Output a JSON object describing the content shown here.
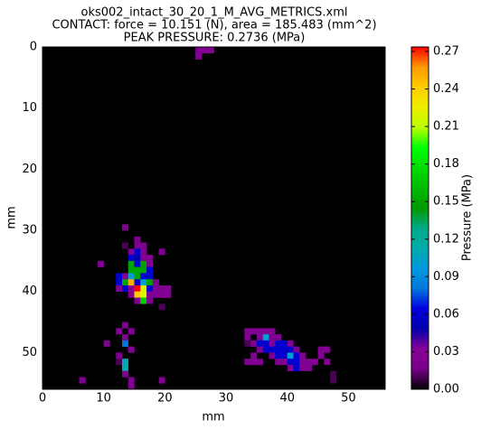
{
  "chart_data": {
    "type": "heatmap",
    "title": [
      "oks002_intact_30_20_1_M_AVG_METRICS.xml",
      "CONTACT: force = 10.151 (N), area = 185.483 (mm^2)",
      "PEAK PRESSURE: 0.2736 (MPa)"
    ],
    "xlabel": "mm",
    "ylabel": "mm",
    "colorbar_label": "Pressure (MPa)",
    "background": "#000000",
    "xlim": [
      0,
      56
    ],
    "ylim": [
      56,
      0
    ],
    "xticks": [
      0,
      10,
      20,
      30,
      40,
      50
    ],
    "yticks": [
      0,
      10,
      20,
      30,
      40,
      50
    ],
    "clim": [
      0,
      0.2736
    ],
    "cticks": [
      {
        "value": 0,
        "label": "0.00"
      },
      0.03,
      0.06,
      0.09,
      0.12,
      0.15,
      0.18,
      0.21,
      0.24,
      0.27
    ],
    "colorscale": [
      "#000000",
      "#770088",
      "#880099",
      "#0000aa",
      "#0000dd",
      "#0077dd",
      "#0099dd",
      "#00aaaa",
      "#00aa88",
      "#009900",
      "#00bb00",
      "#00dd00",
      "#00ff00",
      "#bbff00",
      "#eeee00",
      "#ffcc00",
      "#ff9900",
      "#ff0000"
    ],
    "x": [
      25,
      26,
      27,
      25,
      13,
      15,
      13,
      15,
      16,
      14,
      15,
      16,
      19,
      14,
      15,
      16,
      17,
      9,
      14,
      15,
      16,
      17,
      14,
      15,
      16,
      17,
      12,
      13,
      14,
      15,
      16,
      17,
      12,
      13,
      14,
      15,
      16,
      17,
      18,
      12,
      13,
      14,
      15,
      16,
      17,
      18,
      19,
      20,
      14,
      15,
      16,
      17,
      18,
      19,
      20,
      15,
      16,
      17,
      19,
      13,
      12,
      14,
      13,
      10,
      13,
      14,
      12,
      12,
      13,
      13,
      13,
      6,
      14,
      19,
      14,
      33,
      34,
      35,
      36,
      37,
      33,
      35,
      36,
      37,
      38,
      33,
      34,
      35,
      36,
      37,
      38,
      39,
      40,
      35,
      36,
      37,
      38,
      39,
      40,
      41,
      45,
      46,
      34,
      37,
      38,
      39,
      40,
      41,
      42,
      45,
      33,
      34,
      35,
      38,
      39,
      40,
      41,
      42,
      43,
      44,
      46,
      40,
      41,
      42,
      43,
      47,
      47
    ],
    "y": [
      0,
      0,
      0,
      1,
      29,
      31,
      32,
      32,
      32,
      33,
      33,
      33,
      33,
      34,
      34,
      34,
      34,
      35,
      35,
      35,
      35,
      35,
      36,
      36,
      36,
      36,
      37,
      37,
      37,
      37,
      37,
      37,
      38,
      38,
      38,
      38,
      38,
      38,
      38,
      39,
      39,
      39,
      39,
      39,
      39,
      39,
      39,
      39,
      40,
      40,
      40,
      40,
      40,
      40,
      40,
      41,
      41,
      41,
      42,
      45,
      46,
      46,
      47,
      48,
      48,
      49,
      50,
      51,
      51,
      52,
      53,
      54,
      54,
      54,
      55,
      46,
      46,
      46,
      46,
      46,
      47,
      47,
      47,
      47,
      47,
      48,
      48,
      48,
      48,
      48,
      48,
      48,
      48,
      49,
      49,
      49,
      49,
      49,
      49,
      49,
      49,
      49,
      50,
      50,
      50,
      50,
      50,
      50,
      50,
      50,
      51,
      51,
      51,
      51,
      51,
      51,
      51,
      51,
      51,
      51,
      51,
      52,
      52,
      52,
      52,
      53,
      54
    ],
    "values": [
      0.025,
      0.025,
      0.025,
      0.025,
      0.025,
      0.025,
      0.01,
      0.025,
      0.025,
      0.025,
      0.06,
      0.025,
      0.025,
      0.06,
      0.05,
      0.025,
      0.025,
      0.025,
      0.15,
      0.06,
      0.15,
      0.025,
      0.15,
      0.15,
      0.15,
      0.06,
      0.06,
      0.025,
      0.1,
      0.15,
      0.06,
      0.06,
      0.06,
      0.15,
      0.25,
      0.06,
      0.1,
      0.15,
      0.025,
      0.025,
      0.06,
      0.025,
      0.2736,
      0.22,
      0.06,
      0.025,
      0.025,
      0.025,
      0.025,
      0.24,
      0.22,
      0.025,
      0.025,
      0.025,
      0.025,
      0.025,
      0.17,
      0.025,
      0.01,
      0.025,
      0.025,
      0.025,
      0.025,
      0.025,
      0.08,
      0.025,
      0.025,
      0.01,
      0.11,
      0.11,
      0.025,
      0.025,
      0.025,
      0.025,
      0.025,
      0.025,
      0.025,
      0.025,
      0.025,
      0.025,
      0.025,
      0.025,
      0.1,
      0.025,
      0.025,
      0.01,
      0.025,
      0.06,
      0.06,
      0.025,
      0.06,
      0.06,
      0.025,
      0.025,
      0.06,
      0.06,
      0.06,
      0.06,
      0.06,
      0.025,
      0.025,
      0.025,
      0.025,
      0.025,
      0.06,
      0.06,
      0.1,
      0.06,
      0.025,
      0.025,
      0.025,
      0.025,
      0.025,
      0.025,
      0.025,
      0.06,
      0.06,
      0.025,
      0.025,
      0.025,
      0.025,
      0.025,
      0.06,
      0.025,
      0.025,
      0.01,
      0.01
    ]
  }
}
